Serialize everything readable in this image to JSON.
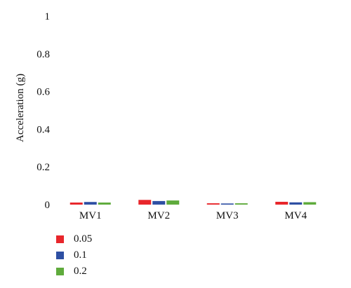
{
  "chart_data": {
    "type": "bar",
    "ylabel": "Acceleration (g)",
    "xlabel": "",
    "ylim": [
      0,
      1
    ],
    "yticks": [
      "0",
      "0.2",
      "0.4",
      "0.6",
      "0.8",
      "1"
    ],
    "categories": [
      "MV1",
      "MV2",
      "MV3",
      "MV4"
    ],
    "series": [
      {
        "name": "0.05",
        "color": "#e8262b",
        "values": [
          0.011,
          0.025,
          0.007,
          0.015
        ]
      },
      {
        "name": "0.1",
        "color": "#2e4fa3",
        "values": [
          0.014,
          0.019,
          0.006,
          0.012
        ]
      },
      {
        "name": "0.2",
        "color": "#5fab3c",
        "values": [
          0.011,
          0.022,
          0.007,
          0.013
        ]
      }
    ],
    "legend_position": "bottom-left",
    "grid": false
  }
}
